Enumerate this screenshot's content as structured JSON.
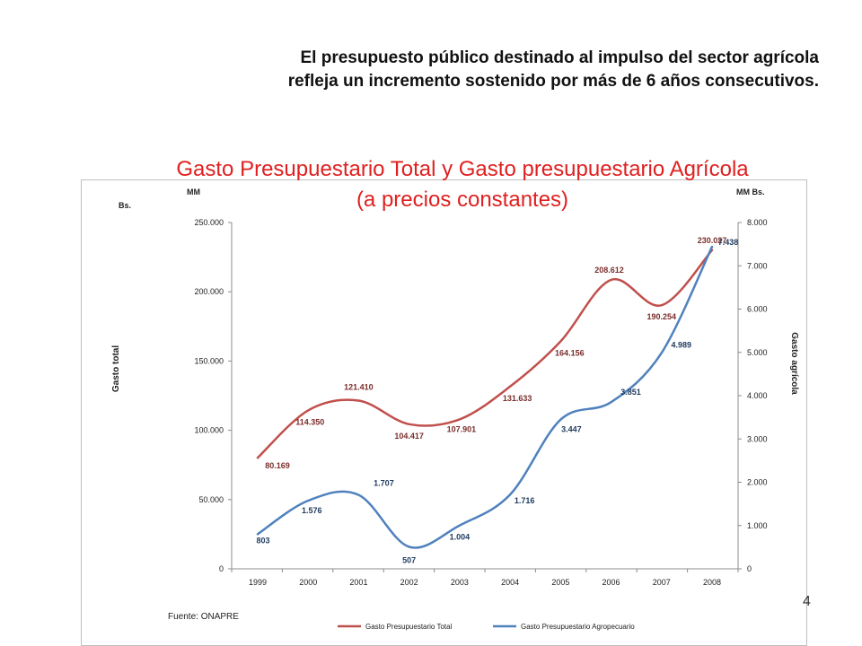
{
  "headline": {
    "line1": "El presupuesto público destinado al impulso del sector agrícola",
    "line2": "refleja un incremento sostenido por más de 6 años consecutivos."
  },
  "slide_number": "4",
  "source": "Fuente: ONAPRE",
  "colors": {
    "total": "#c0504d",
    "agro": "#4f81bd",
    "axis": "#8c8c8c"
  },
  "chart_data": {
    "type": "line",
    "title_line1": "Gasto Presupuestario Total y Gasto presupuestario  Agrícola",
    "title_line2": "(a precios constantes)",
    "categories": [
      "1999",
      "2000",
      "2001",
      "2002",
      "2003",
      "2004",
      "2005",
      "2006",
      "2007",
      "2008"
    ],
    "series": [
      {
        "name": "Gasto Presupuestario Total",
        "axis": "left",
        "values": [
          80169,
          114350,
          121410,
          104417,
          107901,
          131633,
          164156,
          208612,
          190254,
          230027
        ],
        "labels": [
          "80.169",
          "114.350",
          "121.410",
          "104.417",
          "107.901",
          "131.633",
          "164.156",
          "208.612",
          "190.254",
          "230.027"
        ]
      },
      {
        "name": "Gasto Presupuestario Agropecuario",
        "axis": "right",
        "values": [
          803,
          1576,
          1707,
          507,
          1004,
          1716,
          3447,
          3851,
          4989,
          7438
        ],
        "labels": [
          "803",
          "1.576",
          "1.707",
          "507",
          "1.004",
          "1.716",
          "3.447",
          "3.851",
          "4.989",
          "7.438"
        ]
      }
    ],
    "y_left": {
      "label": "Gasto total",
      "unit_top": "MM",
      "unit_sub": "Bs.",
      "range": [
        0,
        250000
      ],
      "ticks": [
        0,
        50000,
        100000,
        150000,
        200000,
        250000
      ],
      "tick_labels": [
        "0",
        "50.000",
        "100.000",
        "150.000",
        "200.000",
        "250.000"
      ]
    },
    "y_right": {
      "label": "Gasto agrícola",
      "unit_top": "MM Bs.",
      "range": [
        0,
        8000
      ],
      "ticks": [
        0,
        1000,
        2000,
        3000,
        4000,
        5000,
        6000,
        7000,
        8000
      ],
      "tick_labels": [
        "0",
        "1.000",
        "2.000",
        "3.000",
        "4.000",
        "5.000",
        "6.000",
        "7.000",
        "8.000"
      ]
    },
    "grid": false,
    "legend": "bottom"
  }
}
